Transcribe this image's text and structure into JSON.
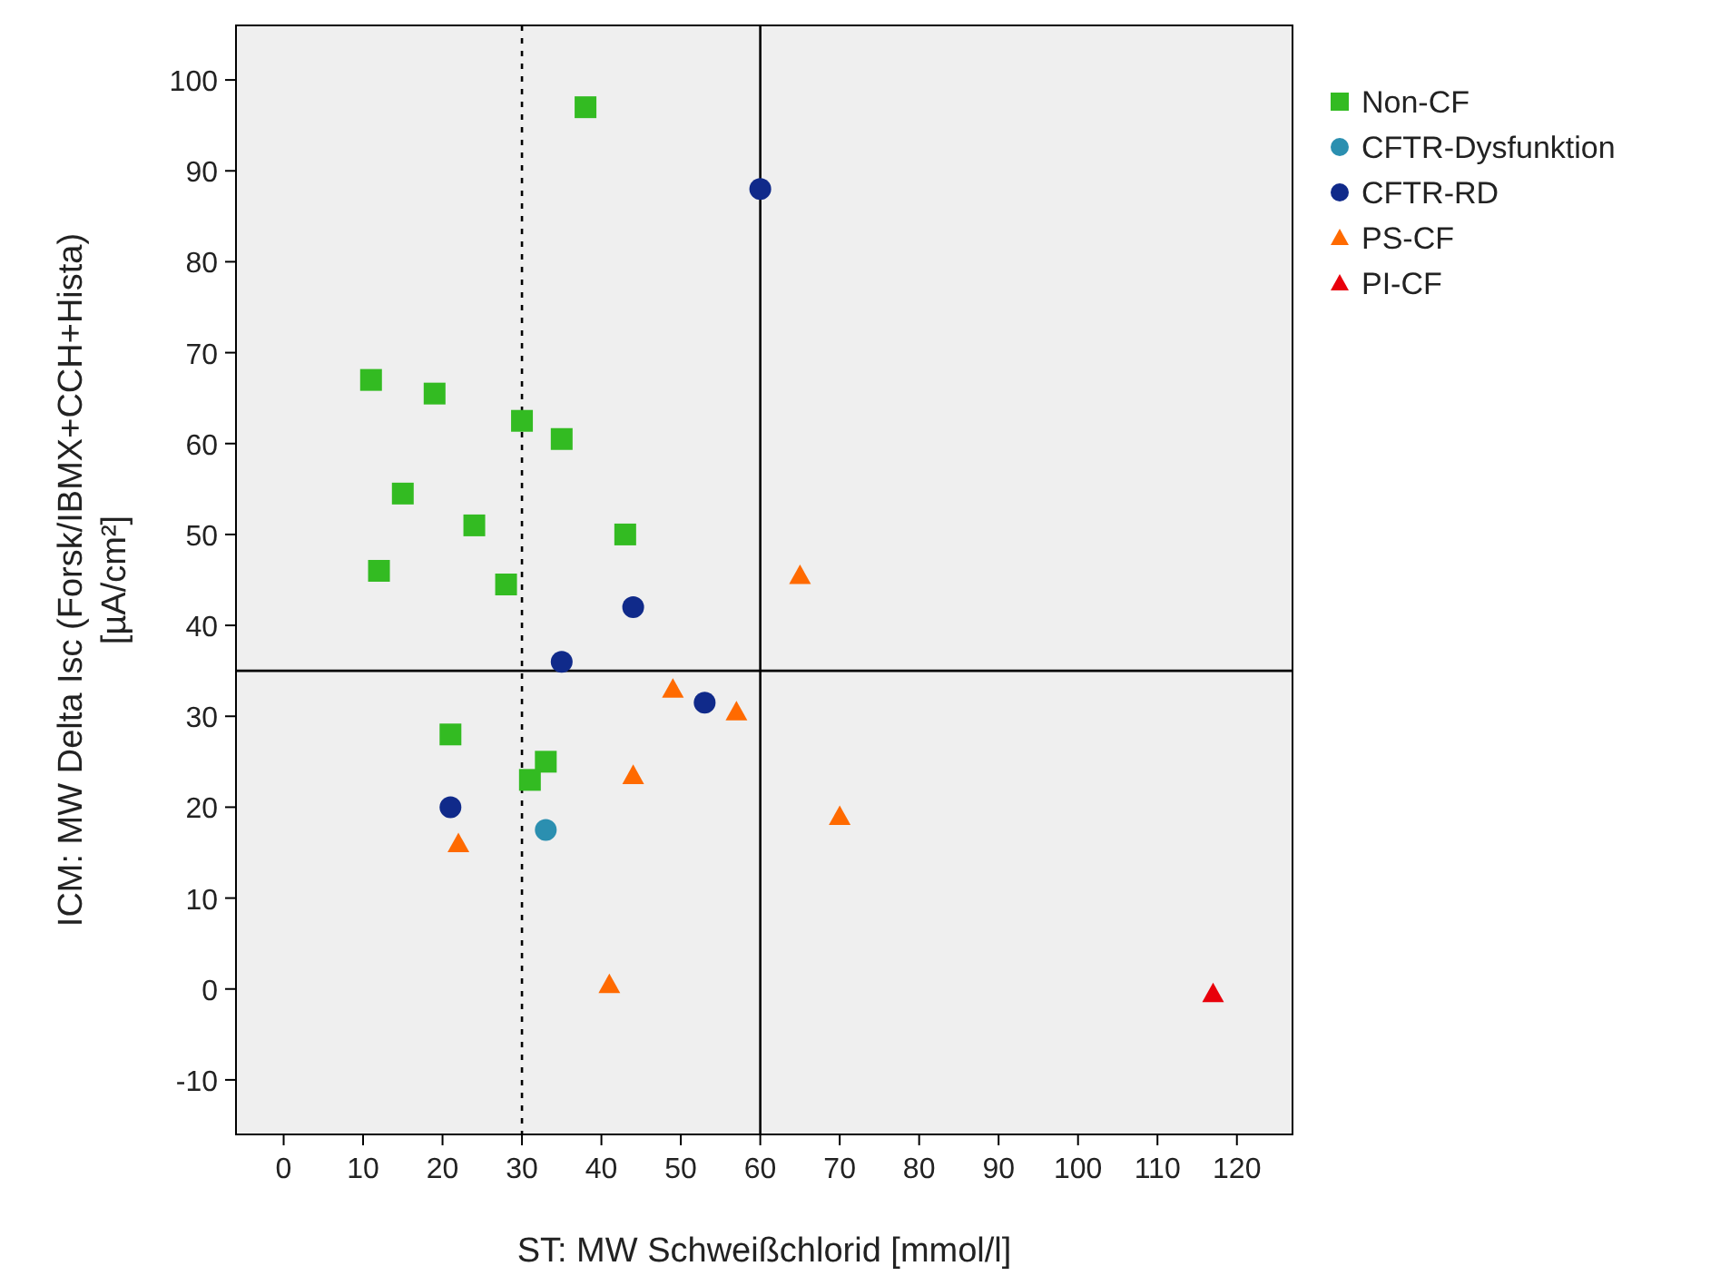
{
  "chart_data": {
    "type": "scatter",
    "xlabel": "ST: MW Schweißchlorid [mmol/l]",
    "ylabel": "ICM: MW Delta Isc (Forsk/IBMX+CCH+Hista) [µA/cm²]",
    "xlim": [
      -6,
      127
    ],
    "ylim": [
      -16,
      106
    ],
    "xticks": [
      0,
      10,
      20,
      30,
      40,
      50,
      60,
      70,
      80,
      90,
      100,
      110,
      120
    ],
    "yticks": [
      -10,
      0,
      10,
      20,
      30,
      40,
      50,
      60,
      70,
      80,
      90,
      100
    ],
    "grid": false,
    "legend": "right",
    "ref_lines": [
      {
        "axis": "y",
        "value": 35,
        "color": "#000000",
        "line_style": "solid"
      },
      {
        "axis": "x",
        "value": 60,
        "color": "#000000",
        "line_style": "solid"
      },
      {
        "axis": "x",
        "value": 30,
        "color": "#000000",
        "line_style": "dotted"
      }
    ],
    "series": [
      {
        "name": "Non-CF",
        "color": "#33bb22",
        "marker": "square",
        "x": [
          38,
          11,
          19,
          30,
          35,
          15,
          24,
          43,
          12,
          28,
          21,
          33,
          31
        ],
        "values": [
          97,
          67,
          65.5,
          62.5,
          60.5,
          54.5,
          51,
          50,
          46,
          44.5,
          28,
          25,
          23
        ]
      },
      {
        "name": "CFTR-Dysfunktion",
        "color": "#2b8fb0",
        "marker": "circle",
        "x": [
          33
        ],
        "values": [
          17.5
        ]
      },
      {
        "name": "CFTR-RD",
        "color": "#102a8a",
        "marker": "circle",
        "x": [
          60,
          44,
          35,
          53,
          21
        ],
        "values": [
          88,
          42,
          36,
          31.5,
          20
        ]
      },
      {
        "name": "PS-CF",
        "color": "#ff6a00",
        "marker": "triangle",
        "x": [
          65,
          49,
          57,
          44,
          70,
          22,
          41
        ],
        "values": [
          45.5,
          33,
          30.5,
          23.5,
          19,
          16,
          0.5
        ]
      },
      {
        "name": "PI-CF",
        "color": "#e8000b",
        "marker": "triangle",
        "x": [
          117
        ],
        "values": [
          -0.5
        ]
      }
    ]
  }
}
